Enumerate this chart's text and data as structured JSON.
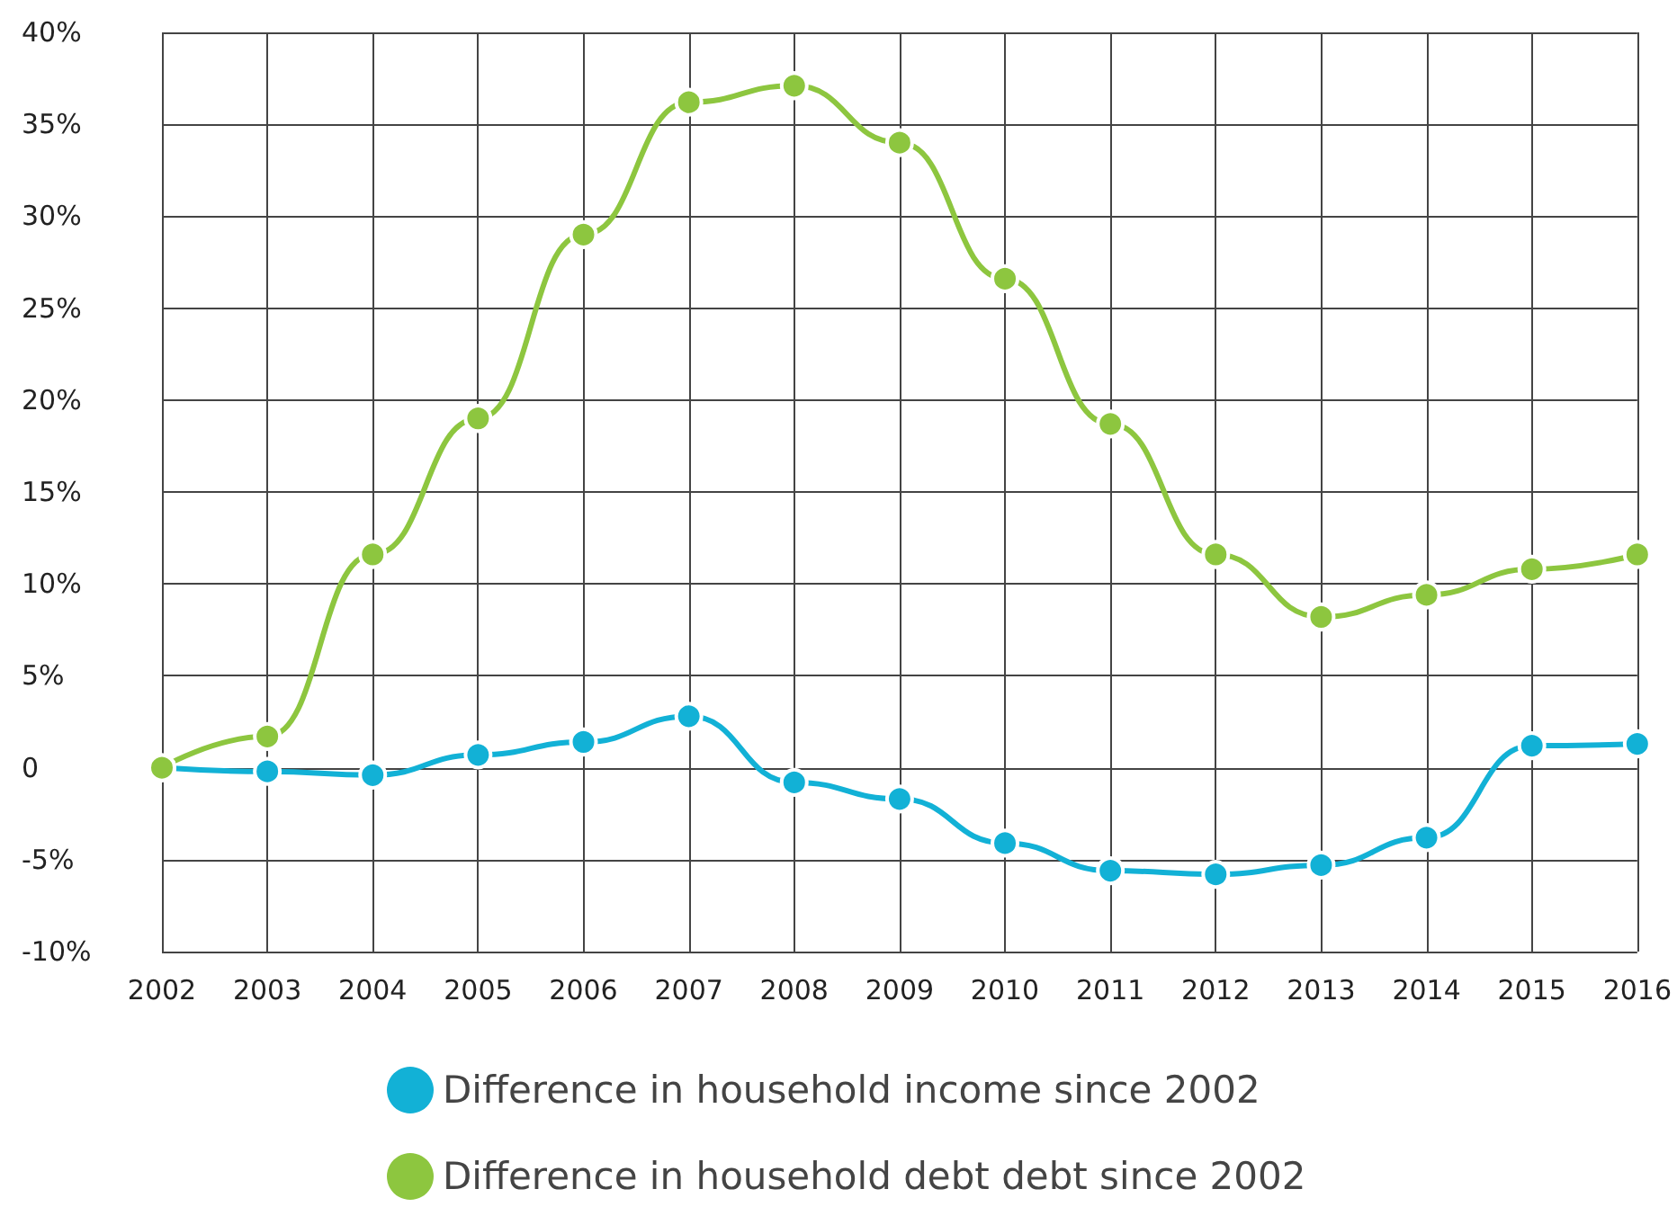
{
  "chart_data": {
    "type": "line",
    "categories": [
      "2002",
      "2003",
      "2004",
      "2005",
      "2006",
      "2007",
      "2008",
      "2009",
      "2010",
      "2011",
      "2012",
      "2013",
      "2014",
      "2015",
      "2016"
    ],
    "series": [
      {
        "name": "Difference in household income since 2002",
        "color": "#12b1d6",
        "values": [
          0,
          -0.2,
          -0.4,
          0.7,
          1.4,
          2.8,
          -0.8,
          -1.7,
          -4.1,
          -5.6,
          -5.8,
          -5.3,
          -3.8,
          1.2,
          1.3
        ]
      },
      {
        "name": "Difference in household debt debt since 2002",
        "color": "#8dc63f",
        "values": [
          0,
          1.7,
          11.6,
          19.0,
          29.0,
          36.2,
          37.1,
          34.0,
          26.6,
          18.7,
          11.6,
          8.2,
          9.4,
          10.8,
          11.6
        ]
      }
    ],
    "ylim": [
      -10,
      40
    ],
    "yticks": [
      {
        "value": -10,
        "label": "-10%"
      },
      {
        "value": -5,
        "label": "-5%"
      },
      {
        "value": 0,
        "label": "0"
      },
      {
        "value": 5,
        "label": "5%"
      },
      {
        "value": 10,
        "label": "10%"
      },
      {
        "value": 15,
        "label": "15%"
      },
      {
        "value": 20,
        "label": "20%"
      },
      {
        "value": 25,
        "label": "25%"
      },
      {
        "value": 30,
        "label": "30%"
      },
      {
        "value": 35,
        "label": "35%"
      },
      {
        "value": 40,
        "label": "40%"
      }
    ],
    "grid": true,
    "legend": "bottom",
    "marker": "circle",
    "line_style": "solid"
  }
}
